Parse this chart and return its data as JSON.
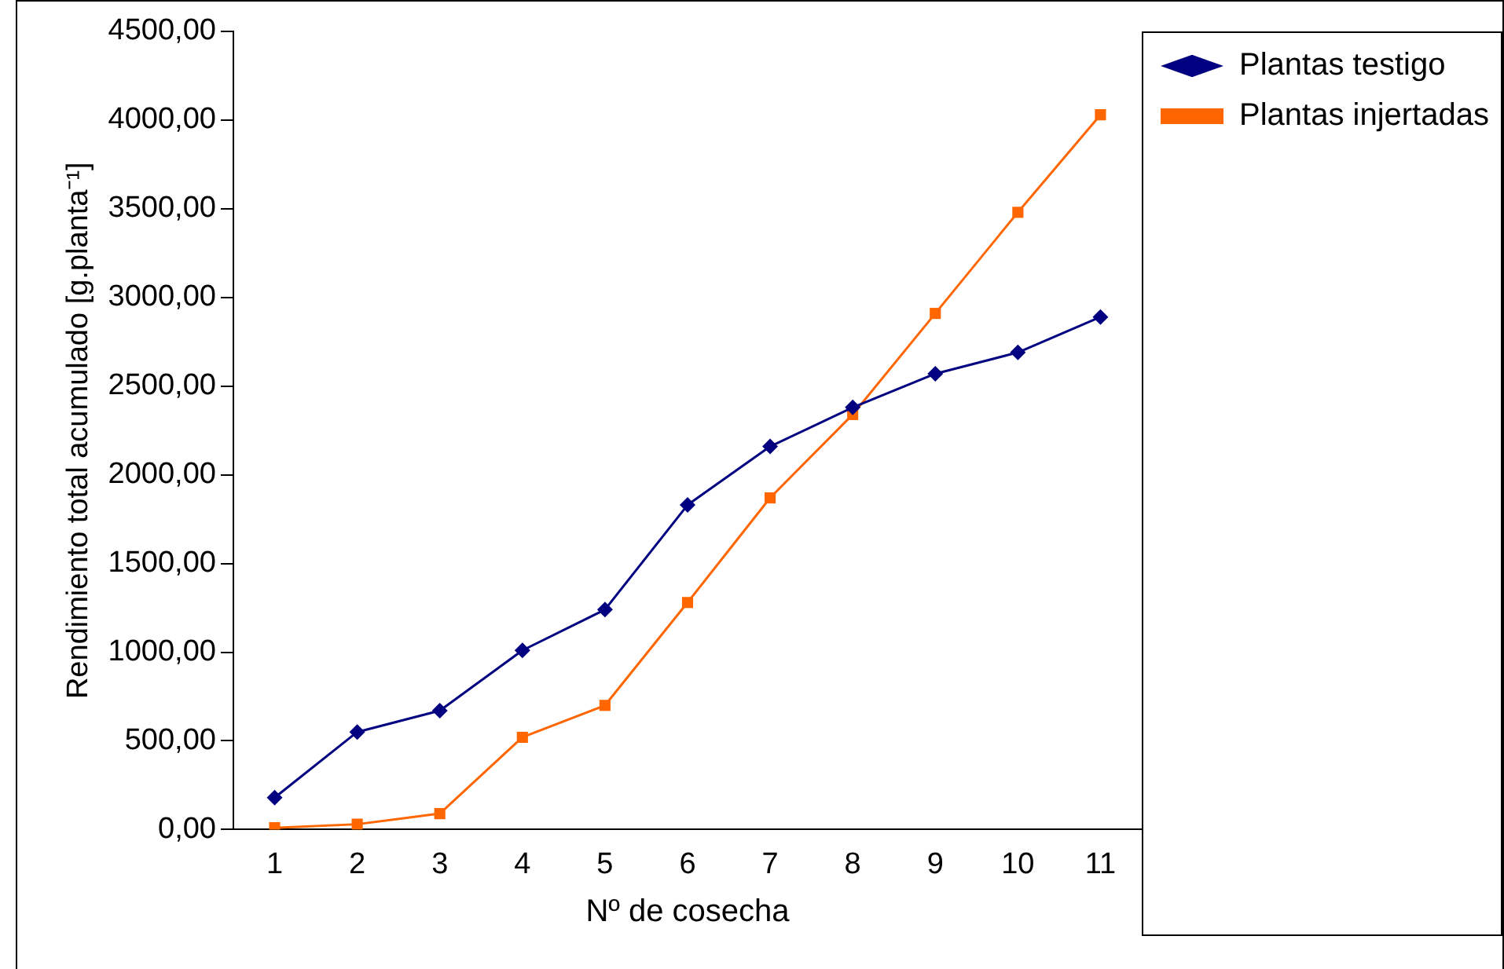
{
  "chart_data": {
    "type": "line",
    "xlabel": "Nº de cosecha",
    "ylabel": "Rendimiento total acumulado [g.planta⁻¹]",
    "categories": [
      "1",
      "2",
      "3",
      "4",
      "5",
      "6",
      "7",
      "8",
      "9",
      "10",
      "11"
    ],
    "series": [
      {
        "name": "Plantas testigo",
        "color": "#000080",
        "marker": "diamond",
        "values": [
          180,
          550,
          670,
          1010,
          1240,
          1830,
          2160,
          2380,
          2570,
          2690,
          2890
        ]
      },
      {
        "name": "Plantas injertadas",
        "color": "#ff6600",
        "marker": "square",
        "values": [
          10,
          30,
          90,
          520,
          700,
          1280,
          1870,
          2340,
          2910,
          3480,
          4030
        ]
      }
    ],
    "ylim": [
      0,
      4500
    ],
    "yticks": [
      {
        "value": 0,
        "label": "0,00"
      },
      {
        "value": 500,
        "label": "500,00"
      },
      {
        "value": 1000,
        "label": "1000,00"
      },
      {
        "value": 1500,
        "label": "1500,00"
      },
      {
        "value": 2000,
        "label": "2000,00"
      },
      {
        "value": 2500,
        "label": "2500,00"
      },
      {
        "value": 3000,
        "label": "3000,00"
      },
      {
        "value": 3500,
        "label": "3500,00"
      },
      {
        "value": 4000,
        "label": "4000,00"
      },
      {
        "value": 4500,
        "label": "4500,00"
      }
    ],
    "grid": false,
    "legend": "top right",
    "line_style": "solid"
  }
}
